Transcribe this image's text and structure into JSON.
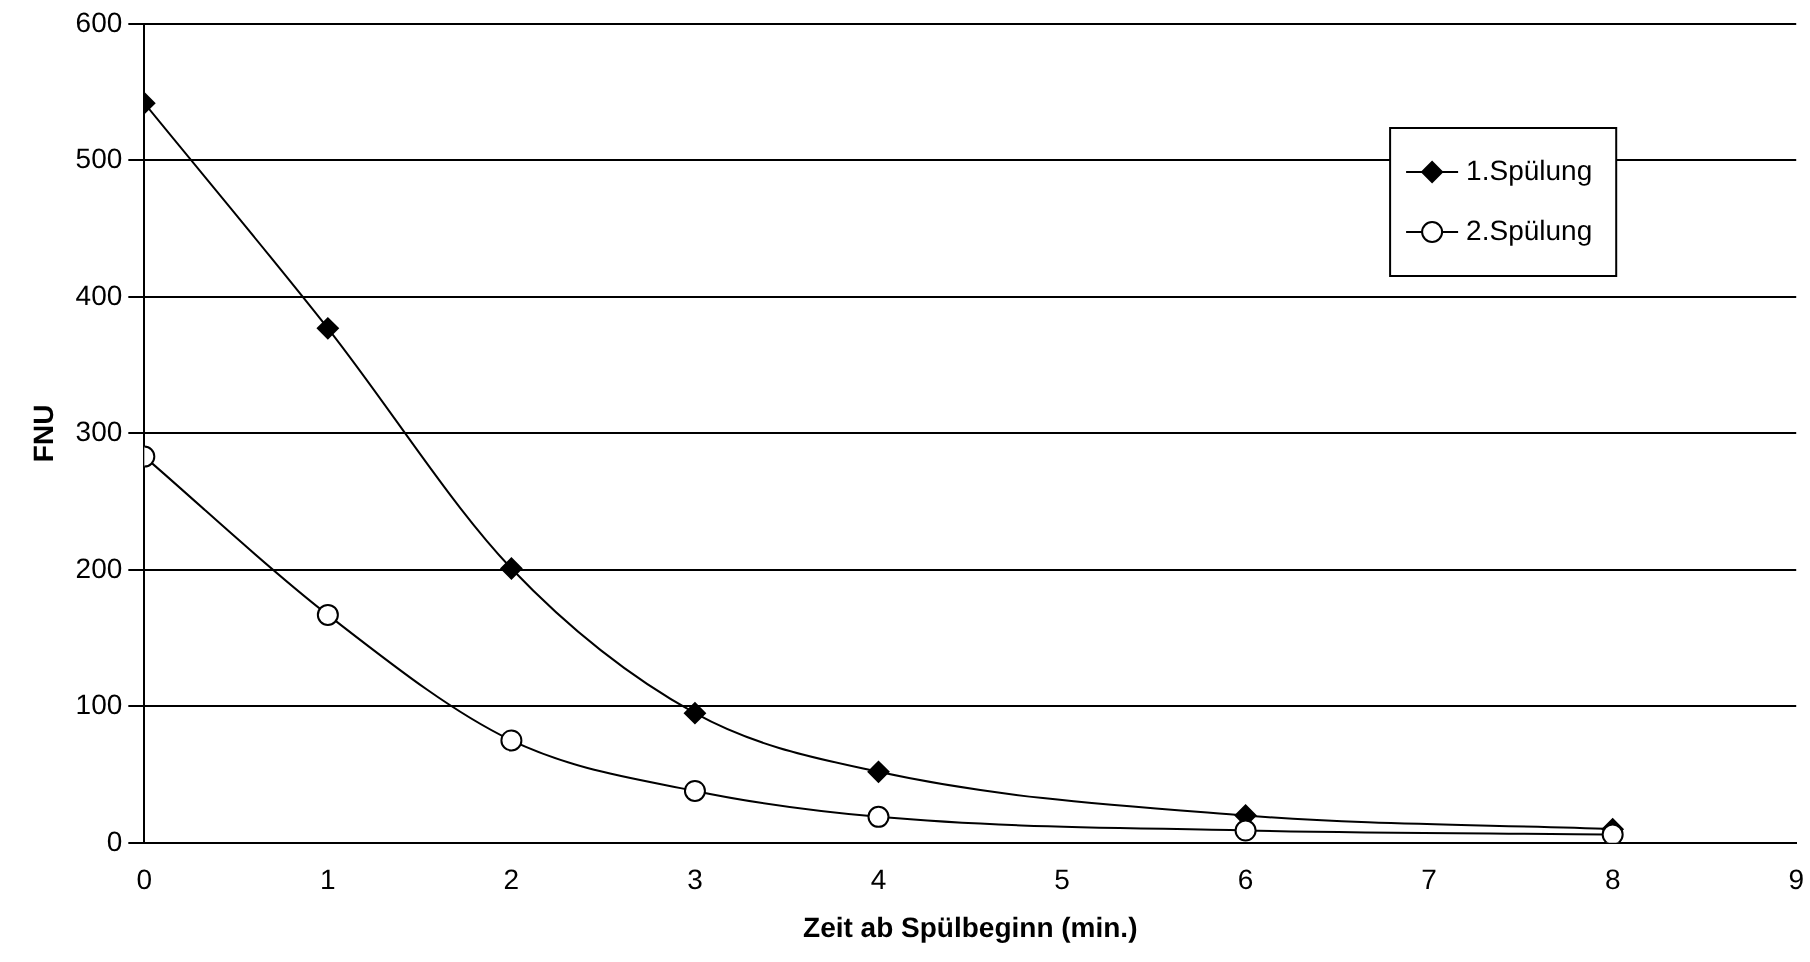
{
  "chart_data": {
    "type": "line",
    "xlabel": "Zeit ab Spülbeginn (min.)",
    "ylabel": "FNU",
    "x": [
      0,
      1,
      2,
      3,
      4,
      6,
      8
    ],
    "series": [
      {
        "name": "1.Spülung",
        "color": "#000000",
        "marker": "diamond",
        "values": [
          542,
          377,
          201,
          95,
          52,
          20,
          10
        ]
      },
      {
        "name": "2.Spülung",
        "color": "#000000",
        "marker": "circle",
        "values": [
          283,
          167,
          75,
          38,
          19,
          9,
          6
        ]
      }
    ],
    "xlim": [
      0,
      9
    ],
    "xticks": [
      0,
      1,
      2,
      3,
      4,
      5,
      6,
      7,
      8,
      9
    ],
    "ylim": [
      0,
      600
    ],
    "yticks": [
      0,
      100,
      200,
      300,
      400,
      500,
      600
    ],
    "grid": "y",
    "legend": "top right"
  }
}
